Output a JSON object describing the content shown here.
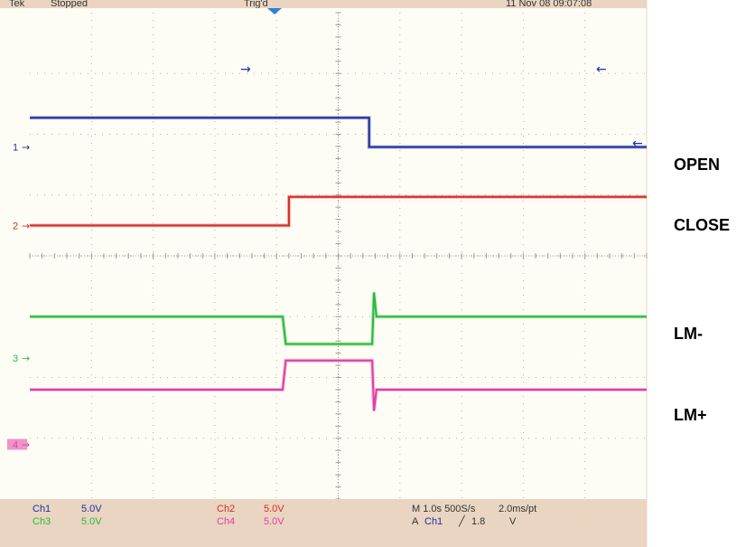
{
  "header": {
    "status_left": "Tek",
    "status_run": "Stopped",
    "status_center": "Trig'd",
    "status_right": "11 Nov 08 09:07:08"
  },
  "readouts": {
    "ch1": {
      "name": "Ch1",
      "scale": "5.0V"
    },
    "ch2": {
      "name": "Ch2",
      "scale": "5.0V"
    },
    "ch3": {
      "name": "Ch3",
      "scale": "5.0V"
    },
    "ch4": {
      "name": "Ch4",
      "scale": "5.0V"
    },
    "timebase": "M 1.0s 500S/s",
    "pts": "2.0ms/pt",
    "trigger_src": "A",
    "trigger_ch": "Ch1",
    "trigger_slope": "╱",
    "trigger_level": "1.8",
    "trigger_unit": "V"
  },
  "colors": {
    "background": "#fdfdf5",
    "bezel": "#ead5c2",
    "grid": "#9a9a9a",
    "ch1": "#1c2f9e",
    "ch2": "#d72b25",
    "ch3": "#27b93c",
    "ch4": "#e03ea2"
  },
  "chart_data": {
    "type": "line",
    "title": "",
    "xlabel": "",
    "ylabel": "",
    "x_unit": "divisions",
    "y_unit": "divisions",
    "xlim": [
      0,
      10
    ],
    "ylim": [
      -4,
      4
    ],
    "grid": true,
    "series": [
      {
        "name": "OPEN",
        "channel": "1",
        "color": "#1c2f9e",
        "x": [
          0,
          5.5,
          5.5,
          10
        ],
        "y": [
          2.27,
          2.27,
          1.79,
          1.79
        ]
      },
      {
        "name": "CLOSE",
        "channel": "2",
        "color": "#d72b25",
        "x": [
          0,
          4.2,
          4.2,
          10
        ],
        "y": [
          0.5,
          0.5,
          0.97,
          0.97
        ]
      },
      {
        "name": "LM-",
        "channel": "3",
        "color": "#27b93c",
        "x": [
          0,
          4.1,
          4.15,
          5.55,
          5.58,
          5.62,
          5.65,
          10
        ],
        "y": [
          -1.0,
          -1.0,
          -1.45,
          -1.45,
          -0.6,
          -1.0,
          -1.0,
          -1.0
        ]
      },
      {
        "name": "LM+",
        "channel": "4",
        "color": "#e03ea2",
        "x": [
          0,
          4.1,
          4.15,
          5.55,
          5.58,
          5.62,
          5.65,
          10
        ],
        "y": [
          -2.2,
          -2.2,
          -1.72,
          -1.72,
          -2.55,
          -2.2,
          -2.2,
          -2.2
        ]
      }
    ]
  }
}
